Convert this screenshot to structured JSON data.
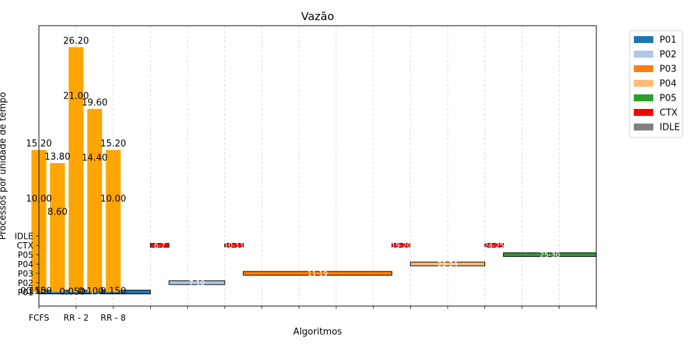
{
  "chart_data": {
    "type": "bar",
    "title": "Vazão",
    "xlabel": "Algoritmos",
    "ylabel": "Processos por unidade de tempo",
    "grid": "vertical dashed",
    "legend_placement": "outside top-right",
    "x_range": [
      0,
      30
    ],
    "x_ticks": [
      {
        "x": 0,
        "label": "FCFS"
      },
      {
        "x": 2,
        "label": "RR - 2"
      },
      {
        "x": 4,
        "label": "RR - 8"
      },
      {
        "x": 6,
        "label": ""
      },
      {
        "x": 8,
        "label": ""
      },
      {
        "x": 10,
        "label": ""
      },
      {
        "x": 12,
        "label": ""
      },
      {
        "x": 14,
        "label": ""
      },
      {
        "x": 16,
        "label": ""
      },
      {
        "x": 18,
        "label": ""
      },
      {
        "x": 20,
        "label": ""
      },
      {
        "x": 22,
        "label": ""
      },
      {
        "x": 24,
        "label": ""
      },
      {
        "x": 26,
        "label": ""
      },
      {
        "x": 28,
        "label": ""
      },
      {
        "x": 30,
        "label": ""
      }
    ],
    "y_range": [
      -1.5,
      28.5
    ],
    "y_ticks": [
      {
        "y": 0,
        "label": "P01"
      },
      {
        "y": 1,
        "label": "P02"
      },
      {
        "y": 2,
        "label": "P03"
      },
      {
        "y": 3,
        "label": "P04"
      },
      {
        "y": 4,
        "label": "P05"
      },
      {
        "y": 5,
        "label": "CTX"
      },
      {
        "y": 6,
        "label": "IDLE"
      }
    ],
    "bars": {
      "color": "#ffa500",
      "width": 0.8,
      "items": [
        {
          "x": 0,
          "value": 15.2,
          "label": "15.20"
        },
        {
          "x": 1,
          "value": 13.8,
          "label": "13.80"
        },
        {
          "x": 2,
          "value": 26.2,
          "label": "26.20"
        },
        {
          "x": 3,
          "value": 19.6,
          "label": "19.60"
        },
        {
          "x": 4,
          "value": 15.2,
          "label": "15.20"
        }
      ]
    },
    "annotations": [
      {
        "x": 0,
        "y": 10.0,
        "text": "10.00"
      },
      {
        "x": 1,
        "y": 8.6,
        "text": "8.60"
      },
      {
        "x": 2,
        "y": 21.0,
        "text": "21.00"
      },
      {
        "x": 3,
        "y": 14.4,
        "text": "14.40"
      },
      {
        "x": 4,
        "y": 10.0,
        "text": "10.00"
      },
      {
        "x": 0,
        "y": 0.15,
        "text": "0.150"
      },
      {
        "x": -0.3,
        "y": 0.15,
        "text": "0.150"
      },
      {
        "x": 1.8,
        "y": 0.05,
        "text": "0.050"
      },
      {
        "x": 2.8,
        "y": 0.1,
        "text": "0.100"
      },
      {
        "x": 4,
        "y": 0.15,
        "text": "0.150"
      }
    ],
    "gantt": [
      {
        "process": "P01",
        "row": 0,
        "start": 0,
        "end": 6,
        "label": "0-6",
        "color": "#1f77b4"
      },
      {
        "process": "CTX",
        "row": 5,
        "start": 6,
        "end": 7,
        "label": "6-7",
        "color": "#ff0000"
      },
      {
        "process": "P02",
        "row": 1,
        "start": 7,
        "end": 10,
        "label": "7-10",
        "color": "#aec7e8"
      },
      {
        "process": "CTX",
        "row": 5,
        "start": 10,
        "end": 11,
        "label": "10-11",
        "color": "#ff0000"
      },
      {
        "process": "P03",
        "row": 2,
        "start": 11,
        "end": 19,
        "label": "11-19",
        "color": "#ff7f0e"
      },
      {
        "process": "CTX",
        "row": 5,
        "start": 19,
        "end": 20,
        "label": "19-20",
        "color": "#ff0000"
      },
      {
        "process": "P04",
        "row": 3,
        "start": 20,
        "end": 24,
        "label": "20-24",
        "color": "#ffbb78"
      },
      {
        "process": "CTX",
        "row": 5,
        "start": 24,
        "end": 25,
        "label": "24-25",
        "color": "#ff0000"
      },
      {
        "process": "P05",
        "row": 4,
        "start": 25,
        "end": 30,
        "label": "25-30",
        "color": "#2ca02c"
      }
    ],
    "legend": [
      {
        "label": "P01",
        "color": "#1f77b4"
      },
      {
        "label": "P02",
        "color": "#aec7e8"
      },
      {
        "label": "P03",
        "color": "#ff7f0e"
      },
      {
        "label": "P04",
        "color": "#ffbb78"
      },
      {
        "label": "P05",
        "color": "#2ca02c"
      },
      {
        "label": "CTX",
        "color": "#ff0000"
      },
      {
        "label": "IDLE",
        "color": "#808080"
      }
    ]
  }
}
